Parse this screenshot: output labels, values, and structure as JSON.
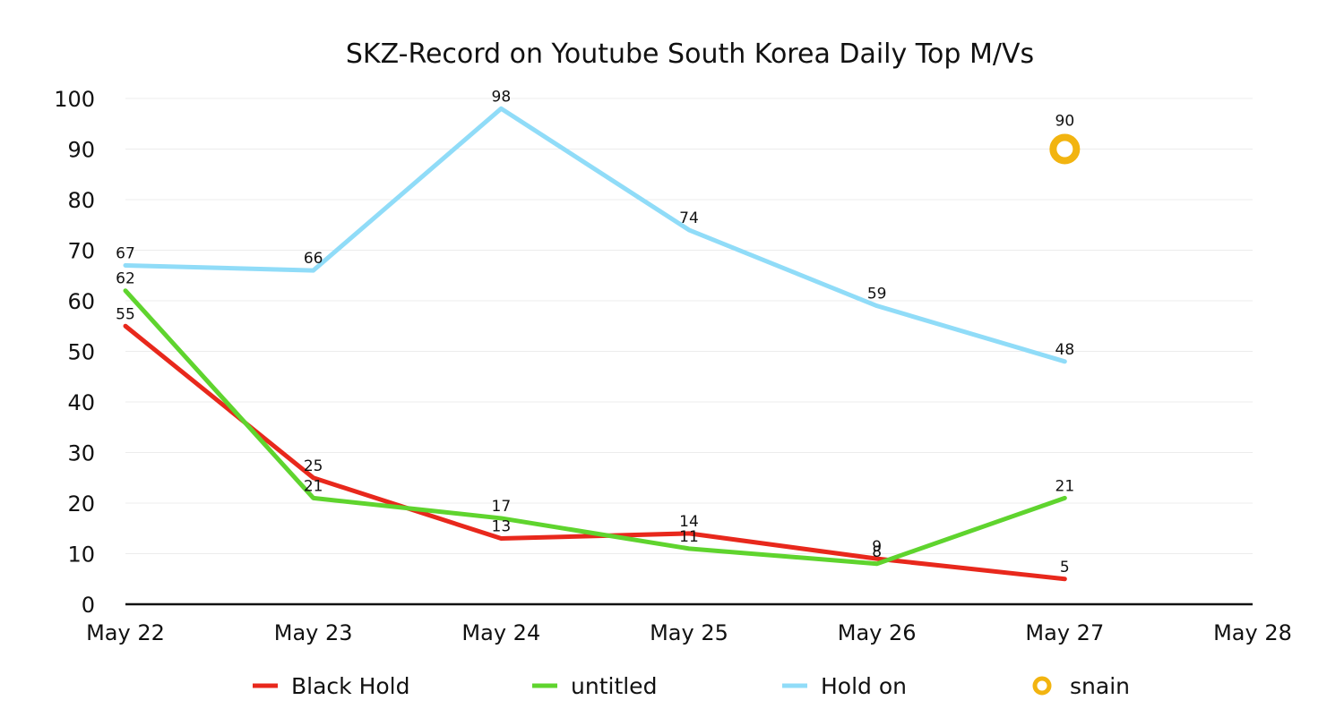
{
  "chart_data": {
    "type": "line",
    "title": "SKZ-Record on Youtube South Korea Daily Top M/Vs",
    "xlabel": "",
    "ylabel": "",
    "categories": [
      "May 22",
      "May 23",
      "May 24",
      "May 25",
      "May 26",
      "May 27",
      "May 28"
    ],
    "ylim": [
      0,
      100
    ],
    "yticks": [
      0,
      10,
      20,
      30,
      40,
      50,
      60,
      70,
      80,
      90,
      100
    ],
    "grid": true,
    "legend_position": "bottom",
    "series": [
      {
        "name": "Black Hold",
        "color": "#e8281c",
        "marker": "line",
        "values": [
          55,
          25,
          13,
          14,
          9,
          5,
          null
        ]
      },
      {
        "name": "untitled",
        "color": "#5fd42e",
        "marker": "line",
        "values": [
          62,
          21,
          17,
          11,
          8,
          21,
          null
        ]
      },
      {
        "name": "Hold on",
        "color": "#90dcf8",
        "marker": "line",
        "values": [
          67,
          66,
          98,
          74,
          59,
          48,
          null
        ]
      },
      {
        "name": "snain",
        "color": "#f2b410",
        "marker": "circle",
        "values": [
          null,
          null,
          null,
          null,
          null,
          90,
          null
        ]
      }
    ]
  }
}
